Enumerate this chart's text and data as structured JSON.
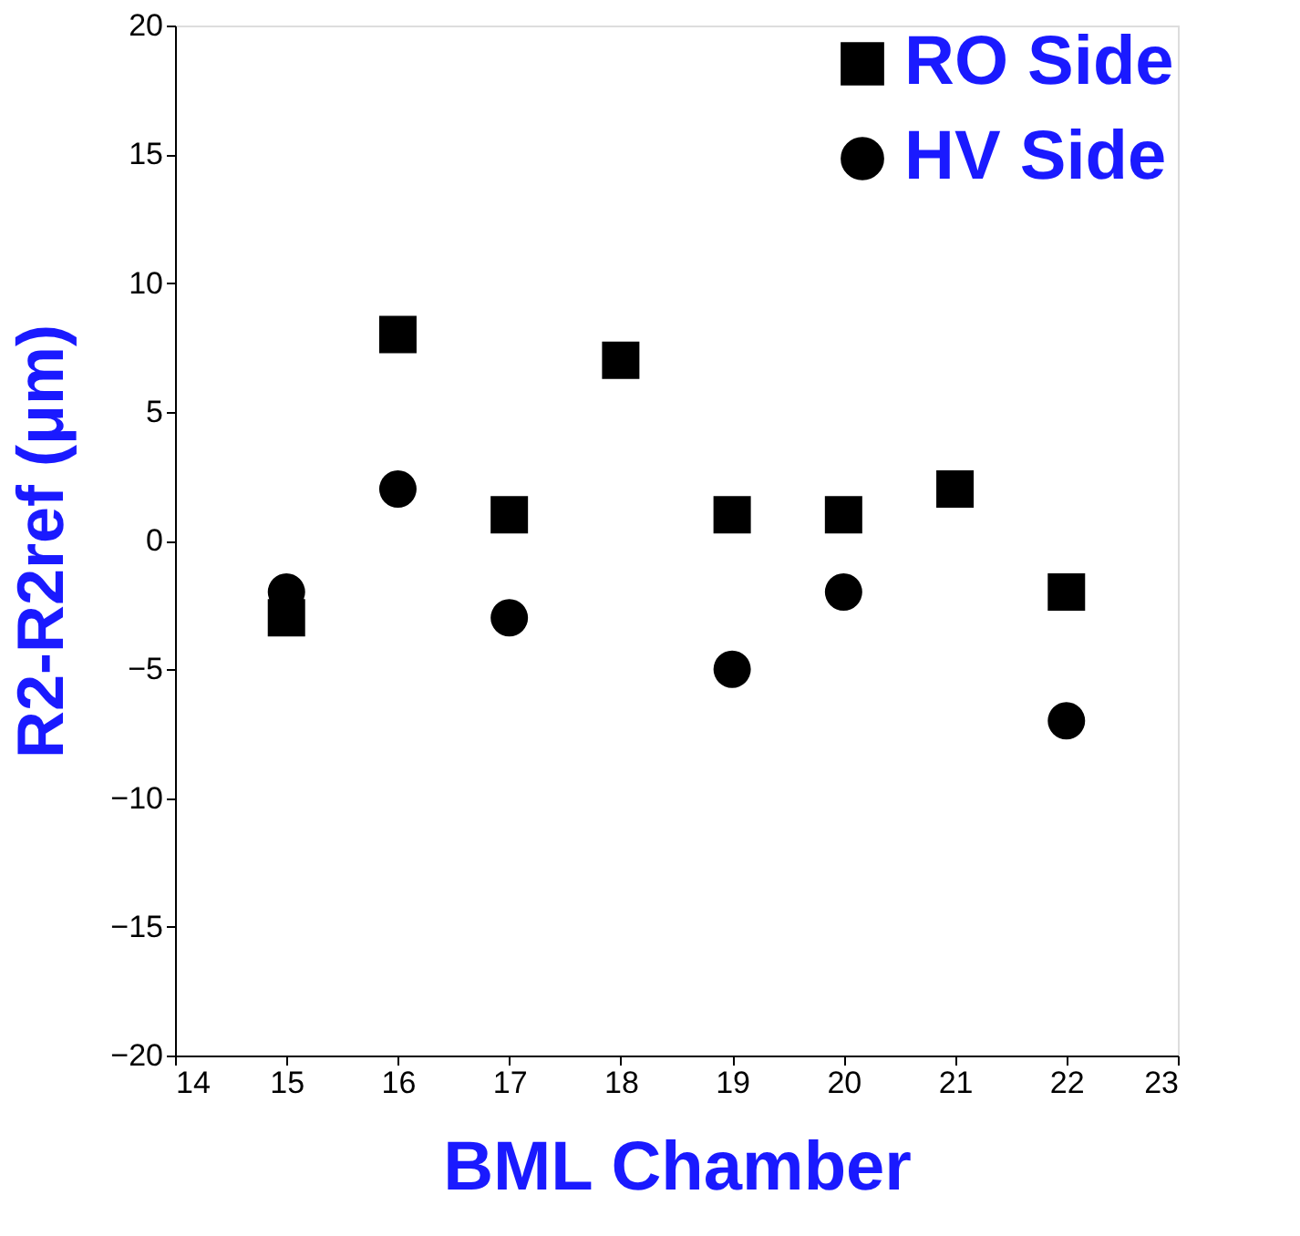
{
  "chart_data": {
    "type": "scatter",
    "xlabel": "BML Chamber",
    "ylabel": "R2-R2ref (μm)",
    "xlim": [
      14,
      23
    ],
    "xticks": [
      14,
      15,
      16,
      17,
      18,
      19,
      20,
      21,
      22,
      23
    ],
    "ylim": [
      -20,
      20
    ],
    "yticks": [
      -20,
      -15,
      -10,
      -5,
      0,
      5,
      10,
      15,
      20
    ],
    "grid": false,
    "legend": "top right",
    "series": [
      {
        "name": "RO Side",
        "color": "#000000",
        "marker": "square",
        "x": [
          15,
          16,
          17,
          18,
          19,
          20,
          21,
          22
        ],
        "values": [
          -3,
          8,
          1,
          7,
          1,
          1,
          2,
          -2
        ]
      },
      {
        "name": "HV Side",
        "color": "#000000",
        "marker": "circle",
        "x": [
          15,
          16,
          17,
          19,
          20,
          22
        ],
        "values": [
          -2,
          2,
          -3,
          -5,
          -2,
          -7
        ]
      }
    ]
  }
}
